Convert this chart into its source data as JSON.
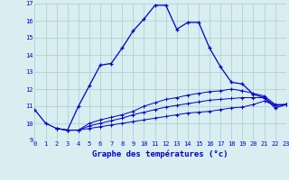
{
  "title": "Graphe des températures (°c)",
  "background_color": "#d8eef0",
  "grid_color": "#aacccc",
  "line_color": "#0000cc",
  "xlim": [
    0,
    23
  ],
  "ylim": [
    9,
    17
  ],
  "yticks": [
    9,
    10,
    11,
    12,
    13,
    14,
    15,
    16,
    17
  ],
  "xticks": [
    0,
    1,
    2,
    3,
    4,
    5,
    6,
    7,
    8,
    9,
    10,
    11,
    12,
    13,
    14,
    15,
    16,
    17,
    18,
    19,
    20,
    21,
    22,
    23
  ],
  "line1_x": [
    0,
    1,
    2,
    3,
    4,
    5,
    6,
    7,
    8,
    9,
    10,
    11,
    12,
    13,
    14,
    15,
    16,
    17,
    18,
    19,
    20,
    21,
    22,
    23
  ],
  "line1_y": [
    10.8,
    10.0,
    9.7,
    9.6,
    11.0,
    12.2,
    13.4,
    13.5,
    14.4,
    15.4,
    16.1,
    16.9,
    16.9,
    15.5,
    15.9,
    15.9,
    14.4,
    13.3,
    12.4,
    12.3,
    11.7,
    11.5,
    10.9,
    11.1
  ],
  "line2_x": [
    2,
    3,
    4,
    5,
    6,
    7,
    8,
    9,
    10,
    11,
    12,
    13,
    14,
    15,
    16,
    17,
    18,
    19,
    20,
    21,
    22,
    23
  ],
  "line2_y": [
    9.7,
    9.6,
    9.6,
    10.0,
    10.2,
    10.35,
    10.5,
    10.7,
    11.0,
    11.2,
    11.4,
    11.5,
    11.65,
    11.75,
    11.85,
    11.9,
    12.0,
    11.9,
    11.75,
    11.6,
    11.1,
    11.1
  ],
  "line3_x": [
    2,
    3,
    4,
    5,
    6,
    7,
    8,
    9,
    10,
    11,
    12,
    13,
    14,
    15,
    16,
    17,
    18,
    19,
    20,
    21,
    22,
    23
  ],
  "line3_y": [
    9.7,
    9.6,
    9.6,
    9.85,
    10.0,
    10.15,
    10.3,
    10.5,
    10.65,
    10.8,
    10.95,
    11.05,
    11.15,
    11.25,
    11.35,
    11.4,
    11.45,
    11.5,
    11.5,
    11.5,
    11.05,
    11.1
  ],
  "line4_x": [
    2,
    3,
    4,
    5,
    6,
    7,
    8,
    9,
    10,
    11,
    12,
    13,
    14,
    15,
    16,
    17,
    18,
    19,
    20,
    21,
    22,
    23
  ],
  "line4_y": [
    9.7,
    9.6,
    9.6,
    9.7,
    9.8,
    9.9,
    10.0,
    10.1,
    10.2,
    10.3,
    10.4,
    10.5,
    10.6,
    10.65,
    10.7,
    10.8,
    10.9,
    10.95,
    11.1,
    11.3,
    11.05,
    11.1
  ]
}
